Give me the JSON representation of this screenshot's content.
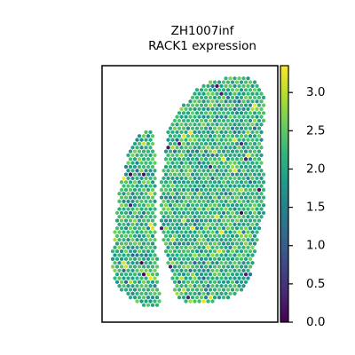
{
  "chart_data": {
    "type": "scatter",
    "title_lines": [
      "ZH1007inf",
      "RACK1 expression"
    ],
    "xlabel": "",
    "ylabel": "",
    "colorbar": {
      "colormap": "viridis",
      "range": [
        0.0,
        3.35
      ],
      "ticks": [
        0.0,
        0.5,
        1.0,
        1.5,
        2.0,
        2.5,
        3.0
      ],
      "tick_labels": [
        "0.0",
        "0.5",
        "1.0",
        "1.5",
        "2.0",
        "2.5",
        "3.0"
      ]
    },
    "grid": false,
    "marker": "hexagon spot",
    "values_summary": {
      "typical_range": [
        1.5,
        2.7
      ],
      "low_outliers_near": 0.0,
      "high_outliers_near": 3.2
    }
  },
  "colors": {
    "frame": "#000000",
    "background": "#ffffff",
    "viridis_stops": [
      "#440154",
      "#482878",
      "#3e4989",
      "#31688e",
      "#26828e",
      "#1f9e89",
      "#35b779",
      "#6ece58",
      "#b5de2b",
      "#fde725"
    ]
  }
}
